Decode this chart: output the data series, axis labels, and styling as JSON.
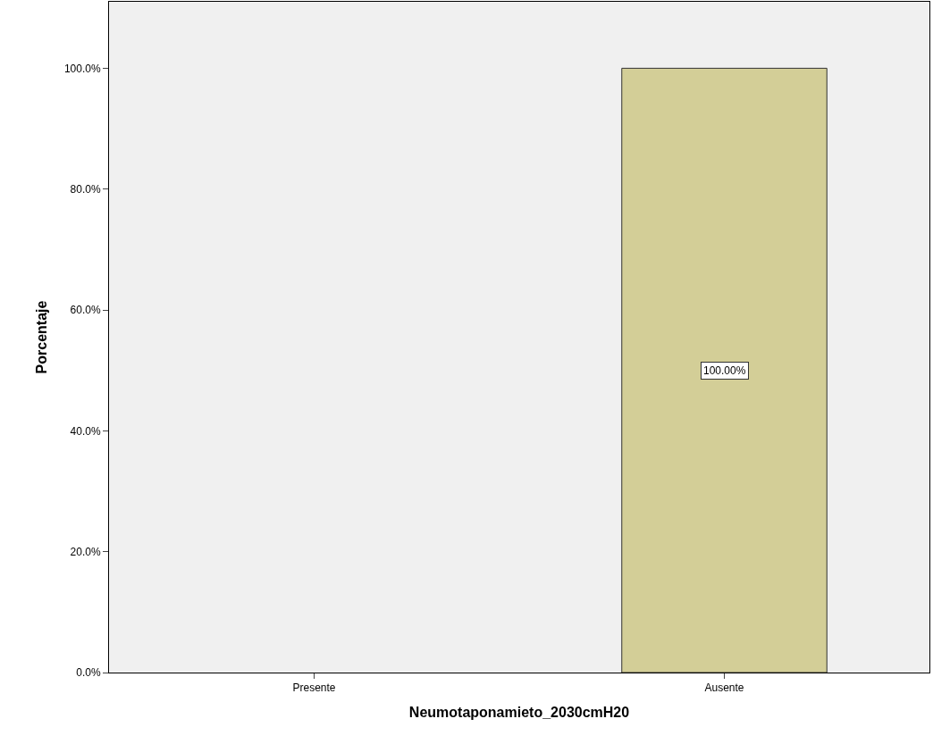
{
  "chart_data": {
    "type": "bar",
    "xlabel": "Neumotaponamieto_2030cmH20",
    "ylabel": "Porcentaje",
    "categories": [
      "Presente",
      "Ausente"
    ],
    "values": [
      0,
      100
    ],
    "value_labels": [
      null,
      "100.00%"
    ],
    "color": "#d3ce97",
    "ylim": [
      0,
      111
    ],
    "yticks": [
      {
        "value": 0,
        "label": "0.0%"
      },
      {
        "value": 20,
        "label": "20.0%"
      },
      {
        "value": 40,
        "label": "40.0%"
      },
      {
        "value": 60,
        "label": "60.0%"
      },
      {
        "value": 80,
        "label": "80.0%"
      },
      {
        "value": 100,
        "label": "100.0%"
      }
    ],
    "grid": false
  }
}
